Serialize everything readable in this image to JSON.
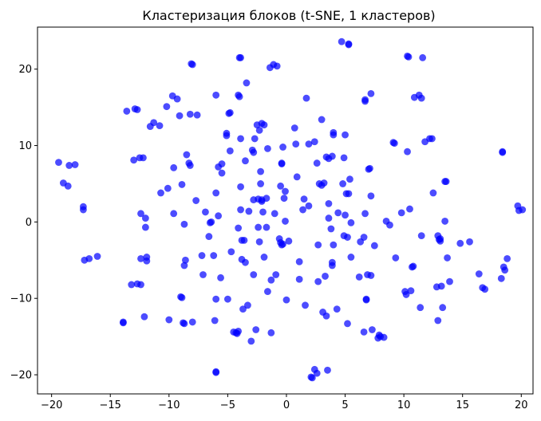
{
  "chart_data": {
    "type": "scatter",
    "title": "Кластеризация блоков (t-SNE, 1 кластеров)",
    "xlabel": "",
    "ylabel": "",
    "xlim": [
      -21.2,
      21.0
    ],
    "ylim": [
      -22.5,
      25.5
    ],
    "x_ticks": [
      -20,
      -15,
      -10,
      -5,
      0,
      5,
      10,
      15,
      20
    ],
    "y_ticks": [
      -20,
      -10,
      0,
      10,
      20
    ],
    "grid": false,
    "marker_color": "#0000ff",
    "marker_alpha": 0.7,
    "series": [
      {
        "points": [
          [
            -19.4,
            7.8
          ],
          [
            -19.0,
            5.1
          ],
          [
            -18.6,
            4.7
          ],
          [
            -18.5,
            7.4
          ],
          [
            -18.0,
            7.5
          ],
          [
            -17.3,
            2.0
          ],
          [
            -17.3,
            1.6
          ],
          [
            -17.2,
            -5.0
          ],
          [
            -16.8,
            -4.8
          ],
          [
            -16.1,
            -4.5
          ],
          [
            -13.9,
            -13.1
          ],
          [
            -13.9,
            -13.2
          ],
          [
            -13.6,
            14.5
          ],
          [
            -13.2,
            -8.2
          ],
          [
            -13.0,
            8.1
          ],
          [
            -12.9,
            14.8
          ],
          [
            -12.7,
            14.7
          ],
          [
            -12.7,
            -8.1
          ],
          [
            -12.5,
            8.4
          ],
          [
            -12.4,
            -4.8
          ],
          [
            -12.4,
            -8.2
          ],
          [
            -12.4,
            1.1
          ],
          [
            -12.2,
            8.4
          ],
          [
            -12.1,
            -12.4
          ],
          [
            -12.0,
            0.5
          ],
          [
            -12.0,
            -0.7
          ],
          [
            -11.9,
            -4.6
          ],
          [
            -11.9,
            -5.1
          ],
          [
            -11.6,
            12.5
          ],
          [
            -11.3,
            13.0
          ],
          [
            -10.8,
            12.6
          ],
          [
            -10.7,
            3.8
          ],
          [
            -10.2,
            15.1
          ],
          [
            -10.1,
            4.4
          ],
          [
            -10.0,
            -12.8
          ],
          [
            -9.7,
            16.5
          ],
          [
            -9.6,
            1.1
          ],
          [
            -9.6,
            7.1
          ],
          [
            -9.3,
            16.1
          ],
          [
            -9.1,
            13.9
          ],
          [
            -9.0,
            -9.8
          ],
          [
            -8.9,
            -9.9
          ],
          [
            -8.9,
            4.9
          ],
          [
            -8.8,
            -13.2
          ],
          [
            -8.7,
            -13.3
          ],
          [
            -8.7,
            -5.7
          ],
          [
            -8.7,
            -0.3
          ],
          [
            -8.6,
            -5.0
          ],
          [
            -8.5,
            8.8
          ],
          [
            -8.3,
            7.7
          ],
          [
            -8.2,
            7.4
          ],
          [
            -8.2,
            14.1
          ],
          [
            -8.1,
            20.7
          ],
          [
            -8.0,
            20.6
          ],
          [
            -8.0,
            -13.1
          ],
          [
            -7.7,
            2.8
          ],
          [
            -7.6,
            14.0
          ],
          [
            -7.2,
            -4.4
          ],
          [
            -7.1,
            -6.9
          ],
          [
            -6.9,
            1.3
          ],
          [
            -6.6,
            -1.9
          ],
          [
            -6.5,
            -0.1
          ],
          [
            -6.4,
            0.0
          ],
          [
            -6.2,
            -4.4
          ],
          [
            -6.1,
            -12.9
          ],
          [
            -6.0,
            -19.7
          ],
          [
            -6.0,
            -19.6
          ],
          [
            -6.0,
            -10.1
          ],
          [
            -6.0,
            3.8
          ],
          [
            -6.0,
            16.6
          ],
          [
            -5.8,
            0.8
          ],
          [
            -5.8,
            7.2
          ],
          [
            -5.6,
            -7.3
          ],
          [
            -5.5,
            6.4
          ],
          [
            -5.5,
            7.6
          ],
          [
            -5.1,
            11.6
          ],
          [
            -5.1,
            11.3
          ],
          [
            -5.0,
            -10.1
          ],
          [
            -4.9,
            14.2
          ],
          [
            -4.8,
            14.3
          ],
          [
            -4.8,
            9.3
          ],
          [
            -4.7,
            -3.9
          ],
          [
            -4.5,
            -14.4
          ],
          [
            -4.3,
            -14.5
          ],
          [
            -4.2,
            -14.6
          ],
          [
            -4.1,
            -14.3
          ],
          [
            -4.1,
            -0.8
          ],
          [
            -4.1,
            16.6
          ],
          [
            -4.0,
            16.4
          ],
          [
            -4.0,
            21.5
          ],
          [
            -3.9,
            21.5
          ],
          [
            -3.9,
            1.6
          ],
          [
            -3.9,
            4.6
          ],
          [
            -3.9,
            10.9
          ],
          [
            -3.8,
            -2.4
          ],
          [
            -3.8,
            -4.9
          ],
          [
            -3.7,
            -11.4
          ],
          [
            -3.6,
            -2.4
          ],
          [
            -3.5,
            -5.3
          ],
          [
            -3.5,
            8.0
          ],
          [
            -3.4,
            18.2
          ],
          [
            -3.3,
            -10.9
          ],
          [
            -3.2,
            1.4
          ],
          [
            -3.0,
            -15.6
          ],
          [
            -2.9,
            9.4
          ],
          [
            -2.8,
            9.1
          ],
          [
            -2.8,
            2.9
          ],
          [
            -2.8,
            -6.9
          ],
          [
            -2.7,
            10.9
          ],
          [
            -2.6,
            -14.1
          ],
          [
            -2.5,
            12.7
          ],
          [
            -2.4,
            -0.7
          ],
          [
            -2.4,
            3.0
          ],
          [
            -2.3,
            -2.6
          ],
          [
            -2.3,
            12.0
          ],
          [
            -2.2,
            5.0
          ],
          [
            -2.2,
            6.6
          ],
          [
            -2.1,
            12.9
          ],
          [
            -2.1,
            2.9
          ],
          [
            -2.1,
            2.7
          ],
          [
            -2.0,
            1.3
          ],
          [
            -1.9,
            -4.6
          ],
          [
            -1.9,
            12.7
          ],
          [
            -1.7,
            3.1
          ],
          [
            -1.7,
            -0.7
          ],
          [
            -1.6,
            9.6
          ],
          [
            -1.6,
            -9.1
          ],
          [
            -1.4,
            20.2
          ],
          [
            -1.3,
            -7.6
          ],
          [
            -1.3,
            -14.5
          ],
          [
            -1.1,
            20.6
          ],
          [
            -1.0,
            1.1
          ],
          [
            -0.9,
            -6.9
          ],
          [
            -0.8,
            20.4
          ],
          [
            -0.6,
            -2.2
          ],
          [
            -0.5,
            4.7
          ],
          [
            -0.5,
            -2.7
          ],
          [
            -0.4,
            -3.0
          ],
          [
            -0.4,
            7.6
          ],
          [
            -0.4,
            7.7
          ],
          [
            -0.3,
            -2.9
          ],
          [
            -0.3,
            9.8
          ],
          [
            -0.2,
            3.1
          ],
          [
            -0.1,
            4.0
          ],
          [
            -0.1,
            0.1
          ],
          [
            0.0,
            -10.2
          ],
          [
            0.2,
            -2.5
          ],
          [
            0.7,
            12.3
          ],
          [
            0.8,
            10.2
          ],
          [
            0.9,
            5.9
          ],
          [
            1.1,
            -5.2
          ],
          [
            1.1,
            -7.5
          ],
          [
            1.4,
            1.6
          ],
          [
            1.5,
            3.0
          ],
          [
            1.6,
            -10.9
          ],
          [
            1.7,
            16.2
          ],
          [
            1.9,
            10.2
          ],
          [
            1.9,
            2.1
          ],
          [
            2.1,
            -20.3
          ],
          [
            2.2,
            -20.4
          ],
          [
            2.4,
            -19.3
          ],
          [
            2.4,
            10.5
          ],
          [
            2.6,
            7.7
          ],
          [
            2.6,
            -19.8
          ],
          [
            2.7,
            -3.0
          ],
          [
            2.7,
            -7.8
          ],
          [
            2.8,
            5.0
          ],
          [
            3.0,
            13.4
          ],
          [
            3.0,
            4.8
          ],
          [
            3.1,
            -11.8
          ],
          [
            3.2,
            5.1
          ],
          [
            3.3,
            -7.1
          ],
          [
            3.4,
            8.5
          ],
          [
            3.4,
            -12.3
          ],
          [
            3.5,
            -19.4
          ],
          [
            3.6,
            2.4
          ],
          [
            3.6,
            0.5
          ],
          [
            3.6,
            8.3
          ],
          [
            3.8,
            -0.9
          ],
          [
            3.9,
            -5.7
          ],
          [
            3.9,
            -5.3
          ],
          [
            3.9,
            8.6
          ],
          [
            4.0,
            11.7
          ],
          [
            4.0,
            11.4
          ],
          [
            4.0,
            -3.0
          ],
          [
            4.3,
            -11.4
          ],
          [
            4.4,
            1.2
          ],
          [
            4.7,
            23.6
          ],
          [
            4.8,
            5.0
          ],
          [
            4.9,
            -1.8
          ],
          [
            4.9,
            8.4
          ],
          [
            5.0,
            0.9
          ],
          [
            5.0,
            11.4
          ],
          [
            5.1,
            3.7
          ],
          [
            5.2,
            -2.0
          ],
          [
            5.2,
            -13.3
          ],
          [
            5.3,
            23.3
          ],
          [
            5.3,
            23.2
          ],
          [
            5.3,
            3.7
          ],
          [
            5.4,
            5.6
          ],
          [
            5.5,
            -0.1
          ],
          [
            5.5,
            -4.6
          ],
          [
            6.2,
            -7.2
          ],
          [
            6.3,
            -2.6
          ],
          [
            6.6,
            -2.0
          ],
          [
            6.6,
            -14.4
          ],
          [
            6.7,
            1.1
          ],
          [
            6.7,
            16.0
          ],
          [
            6.7,
            15.8
          ],
          [
            6.8,
            -10.2
          ],
          [
            6.8,
            -10.1
          ],
          [
            6.9,
            -6.9
          ],
          [
            7.0,
            6.9
          ],
          [
            7.1,
            7.0
          ],
          [
            7.2,
            16.8
          ],
          [
            7.2,
            3.4
          ],
          [
            7.2,
            -7.0
          ],
          [
            7.3,
            -14.1
          ],
          [
            7.5,
            -3.1
          ],
          [
            7.8,
            -15.2
          ],
          [
            7.9,
            -14.8
          ],
          [
            8.0,
            -15.0
          ],
          [
            8.3,
            -15.1
          ],
          [
            8.5,
            0.1
          ],
          [
            8.8,
            -0.4
          ],
          [
            9.1,
            10.4
          ],
          [
            9.2,
            10.3
          ],
          [
            9.3,
            -4.7
          ],
          [
            9.8,
            1.2
          ],
          [
            10.1,
            -9.1
          ],
          [
            10.2,
            -9.5
          ],
          [
            10.3,
            9.2
          ],
          [
            10.3,
            21.7
          ],
          [
            10.4,
            21.6
          ],
          [
            10.5,
            1.7
          ],
          [
            10.6,
            -9.0
          ],
          [
            10.7,
            -5.9
          ],
          [
            10.8,
            -5.8
          ],
          [
            10.9,
            16.3
          ],
          [
            11.3,
            16.6
          ],
          [
            11.4,
            -11.2
          ],
          [
            11.5,
            16.2
          ],
          [
            11.5,
            -1.8
          ],
          [
            11.6,
            21.5
          ],
          [
            11.8,
            10.5
          ],
          [
            12.2,
            10.9
          ],
          [
            12.4,
            10.9
          ],
          [
            12.5,
            3.8
          ],
          [
            12.8,
            -8.5
          ],
          [
            12.9,
            -12.9
          ],
          [
            12.9,
            -1.8
          ],
          [
            13.0,
            -2.3
          ],
          [
            13.1,
            -2.2
          ],
          [
            13.1,
            -2.5
          ],
          [
            13.2,
            -8.4
          ],
          [
            13.3,
            -11.2
          ],
          [
            13.5,
            0.1
          ],
          [
            13.5,
            5.3
          ],
          [
            13.6,
            5.3
          ],
          [
            13.7,
            -4.7
          ],
          [
            13.9,
            -7.8
          ],
          [
            14.8,
            -2.8
          ],
          [
            15.6,
            -2.6
          ],
          [
            16.4,
            -6.8
          ],
          [
            16.7,
            -8.6
          ],
          [
            16.9,
            -8.8
          ],
          [
            18.3,
            -7.4
          ],
          [
            18.4,
            9.2
          ],
          [
            18.4,
            9.1
          ],
          [
            18.5,
            -5.9
          ],
          [
            18.6,
            -6.3
          ],
          [
            18.8,
            -4.8
          ],
          [
            19.7,
            2.1
          ],
          [
            19.8,
            1.5
          ],
          [
            20.1,
            1.6
          ]
        ]
      }
    ]
  }
}
